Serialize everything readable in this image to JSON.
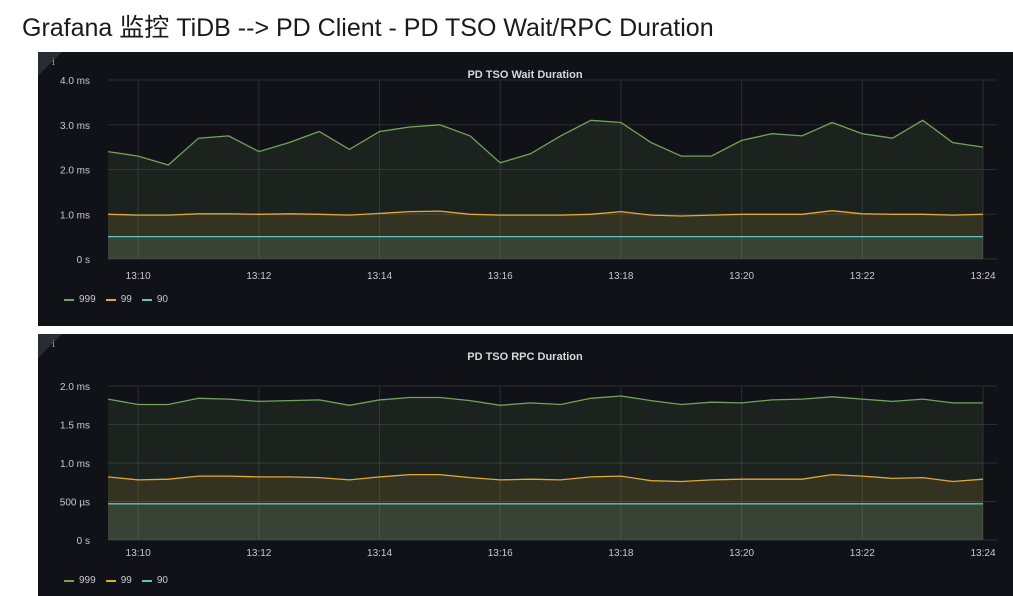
{
  "page_title": "Grafana 监控 TiDB --> PD Client - PD TSO Wait/RPC Duration",
  "colors": {
    "s999": "#73a35b",
    "s99": "#e5a833",
    "s90": "#5ec3c3",
    "panel_bg": "#111217",
    "grid": "#2b2d33"
  },
  "chart_data": [
    {
      "type": "line",
      "title": "PD TSO Wait Duration",
      "unit": "ms",
      "ylim": [
        0,
        4
      ],
      "yticks": [
        0,
        1,
        2,
        3,
        4
      ],
      "yticklabels": [
        "0 s",
        "1.0 ms",
        "2.0 ms",
        "3.0 ms",
        "4.0 ms"
      ],
      "xlim": [
        "13:09:30",
        "13:24:00"
      ],
      "xticks": [
        "13:10",
        "13:12",
        "13:14",
        "13:16",
        "13:18",
        "13:20",
        "13:22",
        "13:24"
      ],
      "grid": true,
      "legend_position": "bottom-left",
      "x": [
        "13:09:30",
        "13:10:00",
        "13:10:30",
        "13:11:00",
        "13:11:30",
        "13:12:00",
        "13:12:30",
        "13:13:00",
        "13:13:30",
        "13:14:00",
        "13:14:30",
        "13:15:00",
        "13:15:30",
        "13:16:00",
        "13:16:30",
        "13:17:00",
        "13:17:30",
        "13:18:00",
        "13:18:30",
        "13:19:00",
        "13:19:30",
        "13:20:00",
        "13:20:30",
        "13:21:00",
        "13:21:30",
        "13:22:00",
        "13:22:30",
        "13:23:00",
        "13:23:30",
        "13:24:00"
      ],
      "series": [
        {
          "name": "999",
          "color": "#73a35b",
          "values": [
            2.4,
            2.3,
            2.1,
            2.7,
            2.75,
            2.4,
            2.6,
            2.85,
            2.45,
            2.85,
            2.95,
            3.0,
            2.75,
            2.15,
            2.35,
            2.75,
            3.1,
            3.05,
            2.6,
            2.3,
            2.3,
            2.65,
            2.8,
            2.75,
            3.05,
            2.8,
            2.7,
            3.1,
            2.6,
            2.5
          ]
        },
        {
          "name": "99",
          "color": "#e5a833",
          "values": [
            1.0,
            0.98,
            0.98,
            1.01,
            1.01,
            1.0,
            1.01,
            1.0,
            0.98,
            1.02,
            1.06,
            1.07,
            1.0,
            0.98,
            0.98,
            0.98,
            1.0,
            1.06,
            0.98,
            0.96,
            0.98,
            1.0,
            1.0,
            1.0,
            1.08,
            1.01,
            1.0,
            1.0,
            0.98,
            1.0
          ]
        },
        {
          "name": "90",
          "color": "#5ec3c3",
          "values": [
            0.5,
            0.5,
            0.5,
            0.5,
            0.5,
            0.5,
            0.5,
            0.5,
            0.5,
            0.5,
            0.5,
            0.5,
            0.5,
            0.5,
            0.5,
            0.5,
            0.5,
            0.5,
            0.5,
            0.5,
            0.5,
            0.5,
            0.5,
            0.5,
            0.5,
            0.5,
            0.5,
            0.5,
            0.5,
            0.5
          ]
        }
      ]
    },
    {
      "type": "line",
      "title": "PD TSO RPC Duration",
      "unit": "ms",
      "ylim": [
        0,
        2
      ],
      "yticks": [
        0,
        0.5,
        1.0,
        1.5,
        2.0
      ],
      "yticklabels": [
        "0 s",
        "500 µs",
        "1.0 ms",
        "1.5 ms",
        "2.0 ms"
      ],
      "xlim": [
        "13:09:30",
        "13:24:00"
      ],
      "xticks": [
        "13:10",
        "13:12",
        "13:14",
        "13:16",
        "13:18",
        "13:20",
        "13:22",
        "13:24"
      ],
      "grid": true,
      "legend_position": "bottom-left",
      "x": [
        "13:09:30",
        "13:10:00",
        "13:10:30",
        "13:11:00",
        "13:11:30",
        "13:12:00",
        "13:12:30",
        "13:13:00",
        "13:13:30",
        "13:14:00",
        "13:14:30",
        "13:15:00",
        "13:15:30",
        "13:16:00",
        "13:16:30",
        "13:17:00",
        "13:17:30",
        "13:18:00",
        "13:18:30",
        "13:19:00",
        "13:19:30",
        "13:20:00",
        "13:20:30",
        "13:21:00",
        "13:21:30",
        "13:22:00",
        "13:22:30",
        "13:23:00",
        "13:23:30",
        "13:24:00"
      ],
      "series": [
        {
          "name": "999",
          "color": "#73a35b",
          "values": [
            1.83,
            1.76,
            1.76,
            1.84,
            1.83,
            1.8,
            1.81,
            1.82,
            1.75,
            1.82,
            1.85,
            1.85,
            1.81,
            1.75,
            1.78,
            1.76,
            1.84,
            1.87,
            1.81,
            1.76,
            1.79,
            1.78,
            1.82,
            1.83,
            1.86,
            1.83,
            1.8,
            1.83,
            1.78,
            1.78
          ]
        },
        {
          "name": "99",
          "color": "#e5a833",
          "values": [
            0.82,
            0.78,
            0.79,
            0.83,
            0.83,
            0.82,
            0.82,
            0.81,
            0.78,
            0.82,
            0.85,
            0.85,
            0.81,
            0.78,
            0.79,
            0.78,
            0.82,
            0.83,
            0.77,
            0.76,
            0.78,
            0.79,
            0.79,
            0.79,
            0.85,
            0.83,
            0.8,
            0.81,
            0.76,
            0.79
          ]
        },
        {
          "name": "90",
          "color": "#5ec3c3",
          "values": [
            0.47,
            0.47,
            0.47,
            0.47,
            0.47,
            0.47,
            0.47,
            0.47,
            0.47,
            0.47,
            0.47,
            0.47,
            0.47,
            0.47,
            0.47,
            0.47,
            0.47,
            0.47,
            0.47,
            0.47,
            0.47,
            0.47,
            0.47,
            0.47,
            0.47,
            0.47,
            0.47,
            0.47,
            0.47,
            0.47
          ]
        }
      ]
    }
  ]
}
